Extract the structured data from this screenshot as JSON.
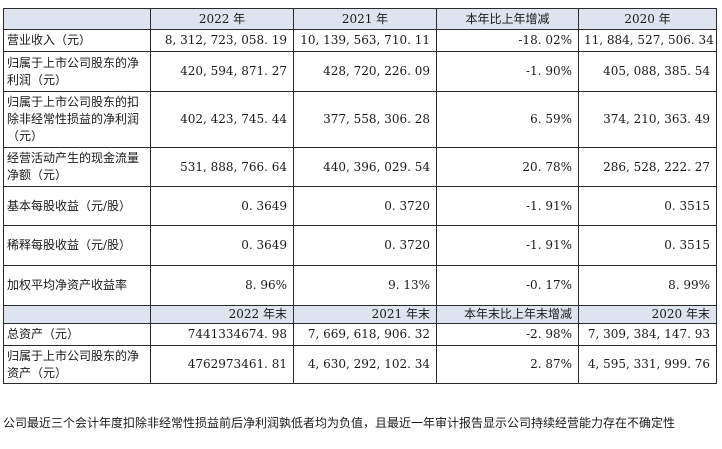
{
  "header": {
    "col0": "",
    "col1": "2022 年",
    "col2": "2021 年",
    "col3": "本年比上年增减",
    "col4": "2020 年"
  },
  "rows": [
    {
      "label": "营业收入（元）",
      "v1": "8, 312, 723, 058. 19",
      "v2": "10, 139, 563, 710. 11",
      "v3": "-18. 02%",
      "v4": "11, 884, 527, 506. 34"
    },
    {
      "label": "归属于上市公司股东的净利润（元）",
      "v1": "420, 594, 871. 27",
      "v2": "428, 720, 226. 09",
      "v3": "-1. 90%",
      "v4": "405, 088, 385. 54"
    },
    {
      "label": "归属于上市公司股东的扣除非经常性损益的净利润（元）",
      "v1": "402, 423, 745. 44",
      "v2": "377, 558, 306. 28",
      "v3": "6. 59%",
      "v4": "374, 210, 363. 49"
    },
    {
      "label": "经营活动产生的现金流量净额（元）",
      "v1": "531, 888, 766. 64",
      "v2": "440, 396, 029. 54",
      "v3": "20. 78%",
      "v4": "286, 528, 222. 27"
    },
    {
      "label": "基本每股收益（元/股）",
      "v1": "0. 3649",
      "v2": "0. 3720",
      "v3": "-1. 91%",
      "v4": "0. 3515"
    },
    {
      "label": "稀释每股收益（元/股）",
      "v1": "0. 3649",
      "v2": "0. 3720",
      "v3": "-1. 91%",
      "v4": "0. 3515"
    },
    {
      "label": "加权平均净资产收益率",
      "v1": "8. 96%",
      "v2": "9. 13%",
      "v3": "-0. 17%",
      "v4": "8. 99%"
    }
  ],
  "header2": {
    "col0": "",
    "col1": "2022 年末",
    "col2": "2021 年末",
    "col3": "本年末比上年末增减",
    "col4": "2020 年末"
  },
  "rows2": [
    {
      "label": "总资产（元）",
      "v1": "7441334674. 98",
      "v2": "7, 669, 618, 906. 32",
      "v3": "-2. 98%",
      "v4": "7, 309, 384, 147. 93"
    },
    {
      "label": "归属于上市公司股东的净资产（元）",
      "v1": "4762973461. 81",
      "v2": "4, 630, 292, 102. 34",
      "v3": "2. 87%",
      "v4": "4, 595, 331, 999. 76"
    }
  ],
  "footnote": "公司最近三个会计年度扣除非经常性损益前后净利润孰低者均为负值，且最近一年审计报告显示公司持续经营能力存在不确定性",
  "colors": {
    "header_bg": "#dde4ef",
    "border": "#2b2b2b"
  }
}
